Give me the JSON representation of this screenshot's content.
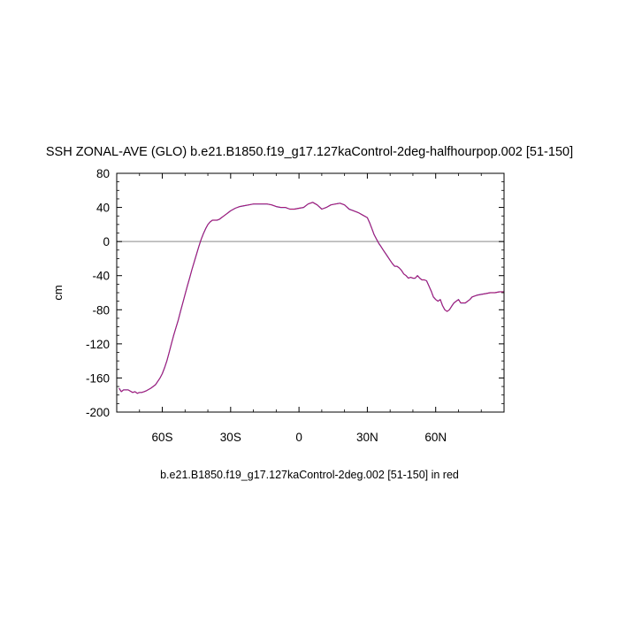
{
  "chart_data": {
    "type": "line",
    "title": "SSH ZONAL-AVE (GLO) b.e21.B1850.f19_g17.127kaControl-2deg-halfhourpop.002 [51-150]",
    "xlabel": "b.e21.B1850.f19_g17.127kaControl-2deg.002 [51-150] in red",
    "ylabel": "cm",
    "xlim": [
      -80,
      90
    ],
    "ylim": [
      -200,
      80
    ],
    "x_ticks": [
      {
        "value": -60,
        "label": "60S"
      },
      {
        "value": -30,
        "label": "30S"
      },
      {
        "value": 0,
        "label": "0"
      },
      {
        "value": 30,
        "label": "30N"
      },
      {
        "value": 60,
        "label": "60N"
      }
    ],
    "y_ticks": [
      {
        "value": 80,
        "label": "80"
      },
      {
        "value": 40,
        "label": "40"
      },
      {
        "value": 0,
        "label": "0"
      },
      {
        "value": -40,
        "label": "-40"
      },
      {
        "value": -80,
        "label": "-80"
      },
      {
        "value": -120,
        "label": "-120"
      },
      {
        "value": -160,
        "label": "-160"
      },
      {
        "value": -200,
        "label": "-200"
      }
    ],
    "reference_line": 0,
    "grid": false,
    "colors": {
      "series_a": "#2040c0",
      "series_b": "#d01060",
      "reference": "#a0a0a0"
    },
    "series": [
      {
        "x": [
          -79,
          -78,
          -77,
          -75,
          -73,
          -72,
          -71,
          -70,
          -69,
          -68,
          -67,
          -65,
          -63,
          -62,
          -61,
          -60,
          -59,
          -58,
          -57,
          -56,
          -55,
          -54,
          -53,
          -52,
          -51,
          -50,
          -49,
          -48,
          -47,
          -46,
          -45,
          -44,
          -43,
          -42,
          -41,
          -40,
          -39,
          -38,
          -37,
          -36,
          -35,
          -34,
          -33,
          -32,
          -31,
          -30,
          -28,
          -26,
          -24,
          -22,
          -20,
          -18,
          -16,
          -14,
          -12,
          -10,
          -8,
          -6,
          -4,
          -2,
          0,
          2,
          4,
          6,
          8,
          10,
          12,
          14,
          16,
          18,
          20,
          22,
          24,
          26,
          28,
          30,
          31,
          32,
          33,
          34,
          35,
          36,
          37,
          38,
          39,
          40,
          41,
          42,
          43,
          44,
          45,
          46,
          47,
          48,
          49,
          50,
          51,
          52,
          53,
          54,
          55,
          56,
          57,
          58,
          59,
          60,
          61,
          62,
          63,
          64,
          65,
          66,
          67,
          68,
          69,
          70,
          71,
          72,
          73,
          74,
          75,
          76,
          78,
          80,
          82,
          84,
          86,
          88,
          90
        ],
        "y": [
          -172,
          -176,
          -174,
          -174,
          -177,
          -176,
          -178,
          -177,
          -177,
          -176,
          -175,
          -172,
          -168,
          -164,
          -160,
          -155,
          -148,
          -140,
          -130,
          -120,
          -110,
          -101,
          -92,
          -82,
          -72,
          -62,
          -52,
          -43,
          -33,
          -24,
          -15,
          -6,
          2,
          9,
          15,
          20,
          23,
          25,
          25,
          25,
          26,
          28,
          30,
          32,
          34,
          36,
          39,
          41,
          42,
          43,
          44,
          44,
          44,
          44,
          43,
          41,
          40,
          40,
          38,
          38,
          39,
          40,
          44,
          46,
          43,
          38,
          40,
          43,
          44,
          45,
          43,
          38,
          36,
          34,
          31,
          28,
          22,
          15,
          8,
          3,
          -2,
          -6,
          -10,
          -14,
          -18,
          -22,
          -26,
          -29,
          -29,
          -31,
          -34,
          -38,
          -40,
          -43,
          -42,
          -43,
          -43,
          -40,
          -43,
          -45,
          -45,
          -46,
          -52,
          -58,
          -65,
          -68,
          -70,
          -68,
          -75,
          -80,
          -82,
          -80,
          -76,
          -72,
          -70,
          -68,
          -72,
          -72,
          -72,
          -70,
          -68,
          -65,
          -63,
          -62,
          -61,
          -60,
          -60,
          -59,
          -59
        ]
      },
      {
        "x": [
          -79,
          -78,
          -77,
          -75,
          -73,
          -72,
          -71,
          -70,
          -69,
          -68,
          -67,
          -65,
          -63,
          -62,
          -61,
          -60,
          -59,
          -58,
          -57,
          -56,
          -55,
          -54,
          -53,
          -52,
          -51,
          -50,
          -49,
          -48,
          -47,
          -46,
          -45,
          -44,
          -43,
          -42,
          -41,
          -40,
          -39,
          -38,
          -37,
          -36,
          -35,
          -34,
          -33,
          -32,
          -31,
          -30,
          -28,
          -26,
          -24,
          -22,
          -20,
          -18,
          -16,
          -14,
          -12,
          -10,
          -8,
          -6,
          -4,
          -2,
          0,
          2,
          4,
          6,
          8,
          10,
          12,
          14,
          16,
          18,
          20,
          22,
          24,
          26,
          28,
          30,
          31,
          32,
          33,
          34,
          35,
          36,
          37,
          38,
          39,
          40,
          41,
          42,
          43,
          44,
          45,
          46,
          47,
          48,
          49,
          50,
          51,
          52,
          53,
          54,
          55,
          56,
          57,
          58,
          59,
          60,
          61,
          62,
          63,
          64,
          65,
          66,
          67,
          68,
          69,
          70,
          71,
          72,
          73,
          74,
          75,
          76,
          78,
          80,
          82,
          84,
          86,
          88,
          90
        ],
        "y": [
          -172,
          -176,
          -174,
          -174,
          -177,
          -176,
          -178,
          -177,
          -177,
          -176,
          -175,
          -172,
          -168,
          -164,
          -160,
          -155,
          -148,
          -140,
          -130,
          -120,
          -110,
          -101,
          -92,
          -82,
          -72,
          -62,
          -52,
          -43,
          -33,
          -24,
          -15,
          -6,
          2,
          9,
          15,
          20,
          23,
          25,
          25,
          25,
          26,
          28,
          30,
          32,
          34,
          36,
          39,
          41,
          42,
          43,
          44,
          44,
          44,
          44,
          43,
          41,
          40,
          40,
          38,
          38,
          39,
          40,
          44,
          46,
          43,
          38,
          40,
          43,
          44,
          45,
          43,
          38,
          36,
          34,
          31,
          28,
          22,
          15,
          8,
          3,
          -2,
          -6,
          -10,
          -14,
          -18,
          -22,
          -26,
          -29,
          -29,
          -31,
          -34,
          -38,
          -40,
          -43,
          -42,
          -43,
          -43,
          -40,
          -43,
          -45,
          -45,
          -46,
          -52,
          -58,
          -65,
          -68,
          -70,
          -68,
          -75,
          -80,
          -82,
          -80,
          -76,
          -72,
          -70,
          -68,
          -72,
          -72,
          -72,
          -70,
          -68,
          -65,
          -63,
          -62,
          -61,
          -60,
          -60,
          -59,
          -59
        ]
      }
    ]
  }
}
